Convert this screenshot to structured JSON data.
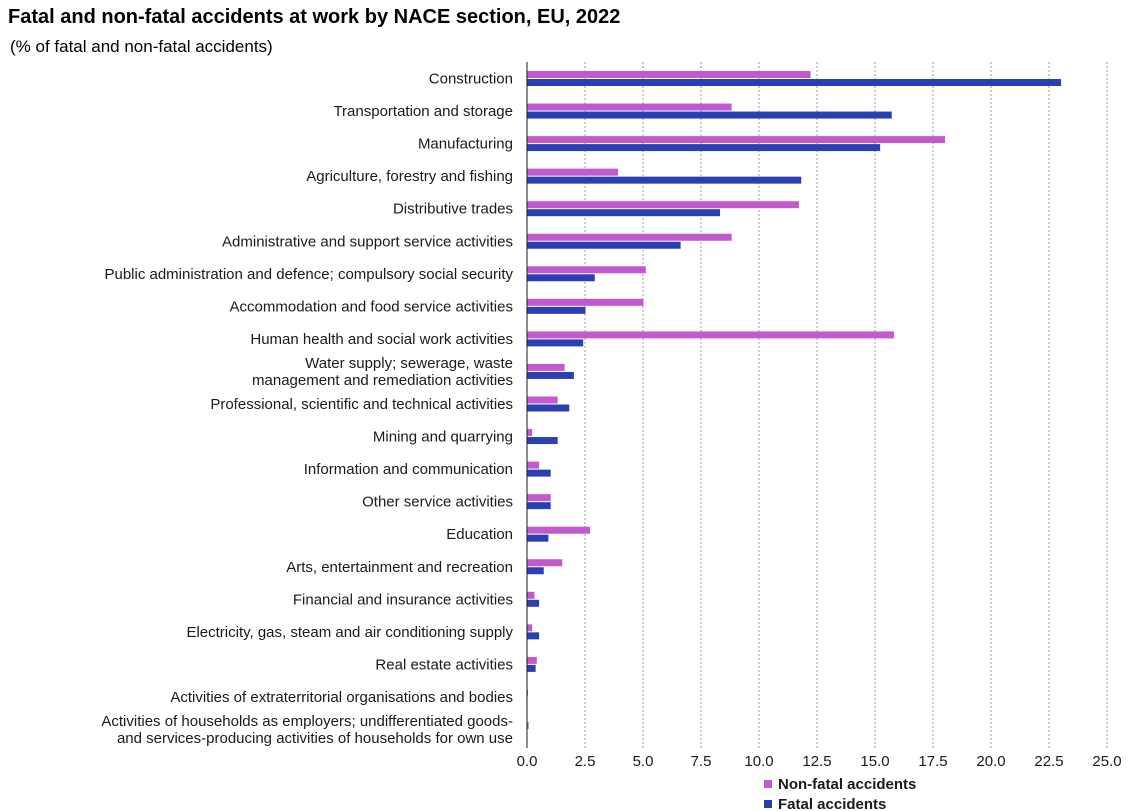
{
  "chart_data": {
    "type": "bar",
    "orientation": "horizontal",
    "title": "Fatal and non-fatal accidents at work by NACE section, EU, 2022",
    "subtitle": "(% of fatal and non-fatal accidents)",
    "categories": [
      [
        "Construction"
      ],
      [
        "Transportation and storage"
      ],
      [
        "Manufacturing"
      ],
      [
        "Agriculture, forestry and fishing"
      ],
      [
        "Distributive trades"
      ],
      [
        "Administrative and support service activities"
      ],
      [
        "Public administration and defence; compulsory social security"
      ],
      [
        "Accommodation and food service activities"
      ],
      [
        "Human health and social work activities"
      ],
      [
        "Water supply; sewerage, waste",
        "management and remediation activities"
      ],
      [
        "Professional, scientific and technical activities"
      ],
      [
        "Mining and quarrying"
      ],
      [
        "Information and communication"
      ],
      [
        "Other service activities"
      ],
      [
        "Education"
      ],
      [
        "Arts, entertainment and recreation"
      ],
      [
        "Financial and insurance activities"
      ],
      [
        "Electricity, gas, steam and air conditioning supply"
      ],
      [
        "Real estate activities"
      ],
      [
        "Activities of extraterritorial organisations and bodies"
      ],
      [
        "Activities of households as employers; undifferentiated goods-",
        "and services-producing activities of households for own use"
      ]
    ],
    "series": [
      {
        "name": "Non-fatal accidents",
        "color": "#c359cf",
        "values": [
          12.2,
          8.8,
          18.0,
          3.9,
          11.7,
          8.8,
          5.1,
          5.0,
          15.8,
          1.6,
          1.3,
          0.2,
          0.5,
          1.0,
          2.7,
          1.5,
          0.3,
          0.2,
          0.4,
          0.02,
          0.05
        ]
      },
      {
        "name": "Fatal accidents",
        "color": "#2a3fb0",
        "values": [
          23.0,
          15.7,
          15.2,
          11.8,
          8.3,
          6.6,
          2.9,
          2.5,
          2.4,
          2.0,
          1.8,
          1.3,
          1.0,
          1.0,
          0.9,
          0.7,
          0.5,
          0.5,
          0.35,
          0.0,
          0.0
        ]
      }
    ],
    "xlim": [
      0,
      25
    ],
    "ticks": [
      "0.0",
      "2.5",
      "5.0",
      "7.5",
      "10.0",
      "12.5",
      "15.0",
      "17.5",
      "20.0",
      "22.5",
      "25.0"
    ],
    "grid": true,
    "legend_position": "bottom"
  }
}
